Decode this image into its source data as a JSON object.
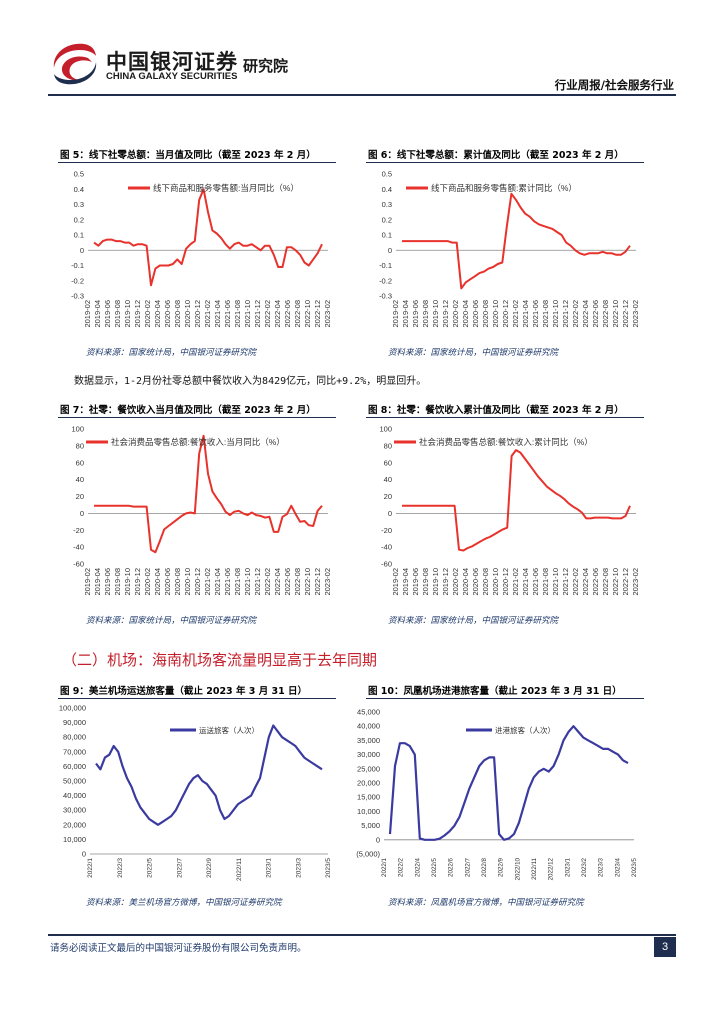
{
  "header": {
    "brand_cn": "中国银河证券",
    "brand_en": "CHINA GALAXY SECURITIES",
    "institute": "研究院",
    "report_type": "行业周报/社会服务行业"
  },
  "body_text": "数据显示，1-2月份社零总额中餐饮收入为8429亿元，同比+9.2%，明显回升。",
  "section_heading": "（二）机场：海南机场客流量明显高于去年同期",
  "footer": {
    "disclaimer": "请务必阅读正文最后的中国银河证券股份有限公司免责声明。",
    "page_number": "3"
  },
  "figures": [
    {
      "title": "图 5：线下社零总额：当月值及同比（截至 2023 年 2 月）",
      "source": "资料来源：国家统计局，中国银河证券研究院"
    },
    {
      "title": "图 6：线下社零总额：累计值及同比（截至 2023 年 2 月）",
      "source": "资料来源：国家统计局，中国银河证券研究院"
    },
    {
      "title": "图 7：社零：餐饮收入当月值及同比（截至 2023 年 2 月）",
      "source": "资料来源：国家统计局，中国银河证券研究院"
    },
    {
      "title": "图 8：社零：餐饮收入累计值及同比（截至 2023 年 2 月）",
      "source": "资料来源：国家统计局，中国银河证券研究院"
    },
    {
      "title": "图 9：美兰机场运送旅客量（截止 2023 年 3 月 31 日）",
      "source": "资料来源：美兰机场官方微博，中国银河证券研究院"
    },
    {
      "title": "图 10：凤凰机场进港旅客量（截止 2023 年 3 月 31 日）",
      "source": "资料来源：凤凰机场官方微博，中国银河证券研究院"
    }
  ],
  "chart_data": [
    {
      "type": "line",
      "legend": "线下商品和服务零售额:当月同比（%）",
      "ylim": [
        -0.3,
        0.5
      ],
      "yticks": [
        "0.5",
        "0.4",
        "0.3",
        "0.2",
        "0.1",
        "0",
        "-0.1",
        "-0.2",
        "-0.3"
      ],
      "xticks": [
        "2019-02",
        "2019-04",
        "2019-06",
        "2019-08",
        "2019-10",
        "2019-12",
        "2020-02",
        "2020-04",
        "2020-06",
        "2020-08",
        "2020-10",
        "2020-12",
        "2021-02",
        "2021-04",
        "2021-06",
        "2021-08",
        "2021-10",
        "2021-12",
        "2022-02",
        "2022-04",
        "2022-06",
        "2022-08",
        "2022-10",
        "2022-12",
        "2023-02"
      ],
      "color": "#e8322c",
      "values": [
        0.05,
        0.03,
        0.06,
        0.07,
        0.07,
        0.06,
        0.06,
        0.05,
        0.05,
        0.03,
        0.04,
        0.04,
        0.03,
        -0.23,
        -0.12,
        -0.1,
        -0.1,
        -0.1,
        -0.09,
        -0.06,
        -0.09,
        0.01,
        0.04,
        0.06,
        0.33,
        0.4,
        0.25,
        0.13,
        0.11,
        0.08,
        0.04,
        0.01,
        0.04,
        0.05,
        0.03,
        0.03,
        0.04,
        0.02,
        0.0,
        0.03,
        0.03,
        -0.03,
        -0.11,
        -0.11,
        0.02,
        0.02,
        0.0,
        -0.03,
        -0.08,
        -0.1,
        -0.06,
        -0.02,
        0.04
      ]
    },
    {
      "type": "line",
      "legend": "线下商品和服务零售额:累计同比（%）",
      "ylim": [
        -0.3,
        0.5
      ],
      "yticks": [
        "0.5",
        "0.4",
        "0.3",
        "0.2",
        "0.1",
        "0",
        "-0.1",
        "-0.2",
        "-0.3"
      ],
      "xticks": [
        "2019-02",
        "2019-04",
        "2019-06",
        "2019-08",
        "2019-10",
        "2019-12",
        "2020-02",
        "2020-04",
        "2020-06",
        "2020-08",
        "2020-10",
        "2020-12",
        "2021-02",
        "2021-04",
        "2021-06",
        "2021-08",
        "2021-10",
        "2021-12",
        "2022-02",
        "2022-04",
        "2022-06",
        "2022-08",
        "2022-10",
        "2022-12",
        "2023-02"
      ],
      "color": "#e8322c",
      "values": [
        0.06,
        0.06,
        0.06,
        0.06,
        0.06,
        0.06,
        0.06,
        0.06,
        0.06,
        0.06,
        0.06,
        0.05,
        0.05,
        -0.25,
        -0.21,
        -0.19,
        -0.17,
        -0.15,
        -0.14,
        -0.12,
        -0.11,
        -0.09,
        -0.08,
        0.16,
        0.37,
        0.33,
        0.28,
        0.24,
        0.22,
        0.19,
        0.17,
        0.16,
        0.15,
        0.14,
        0.12,
        0.1,
        0.05,
        0.03,
        0.0,
        -0.02,
        -0.03,
        -0.02,
        -0.02,
        -0.02,
        -0.01,
        -0.02,
        -0.02,
        -0.03,
        -0.03,
        -0.01,
        0.03
      ]
    },
    {
      "type": "line",
      "legend": "社会消费品零售总额:餐饮收入:当月同比（%）",
      "ylim": [
        -60,
        100
      ],
      "yticks": [
        "100",
        "80",
        "60",
        "40",
        "20",
        "0",
        "-20",
        "-40",
        "-60"
      ],
      "xticks": [
        "2019-02",
        "2019-04",
        "2019-06",
        "2019-08",
        "2019-10",
        "2019-12",
        "2020-02",
        "2020-04",
        "2020-06",
        "2020-08",
        "2020-10",
        "2020-12",
        "2021-02",
        "2021-04",
        "2021-06",
        "2021-08",
        "2021-10",
        "2021-12",
        "2022-02",
        "2022-04",
        "2022-06",
        "2022-08",
        "2022-10",
        "2022-12",
        "2023-02"
      ],
      "color": "#e8322c",
      "values": [
        9,
        9,
        9,
        9,
        9,
        9,
        9,
        9,
        9,
        8,
        8,
        8,
        8,
        -43,
        -46,
        -33,
        -19,
        -15,
        -11,
        -7,
        -3,
        0,
        1,
        0,
        71,
        92,
        47,
        26,
        18,
        11,
        2,
        -2,
        2,
        3,
        0,
        -2,
        1,
        -2,
        -3,
        -5,
        -4,
        -22,
        -22,
        -4,
        -1,
        9,
        -1,
        -10,
        -9,
        -14,
        -15,
        3,
        9
      ]
    },
    {
      "type": "line",
      "legend": "社会消费品零售总额:餐饮收入:累计同比（%）",
      "ylim": [
        -60,
        100
      ],
      "yticks": [
        "100",
        "80",
        "60",
        "40",
        "20",
        "0",
        "-20",
        "-40",
        "-60"
      ],
      "xticks": [
        "2019-02",
        "2019-04",
        "2019-06",
        "2019-08",
        "2019-10",
        "2019-12",
        "2020-02",
        "2020-04",
        "2020-06",
        "2020-08",
        "2020-10",
        "2020-12",
        "2021-02",
        "2021-04",
        "2021-06",
        "2021-08",
        "2021-10",
        "2021-12",
        "2022-02",
        "2022-04",
        "2022-06",
        "2022-08",
        "2022-10",
        "2022-12",
        "2023-02"
      ],
      "color": "#e8322c",
      "values": [
        9,
        9,
        9,
        9,
        9,
        9,
        9,
        9,
        9,
        9,
        9,
        9,
        9,
        -43,
        -44,
        -41,
        -39,
        -36,
        -33,
        -30,
        -28,
        -25,
        -22,
        -19,
        -17,
        68,
        75,
        72,
        65,
        58,
        51,
        44,
        38,
        32,
        28,
        24,
        21,
        17,
        12,
        8,
        5,
        1,
        -6,
        -6,
        -5,
        -5,
        -5,
        -5,
        -6,
        -6,
        -6,
        -3,
        9
      ]
    },
    {
      "type": "line",
      "legend": "运送旅客（人次）",
      "ylim": [
        0,
        100000
      ],
      "yticks": [
        "100,000",
        "90,000",
        "80,000",
        "70,000",
        "60,000",
        "50,000",
        "40,000",
        "30,000",
        "20,000",
        "10,000",
        "0"
      ],
      "xticks": [
        "2022/1",
        "2022/3",
        "2022/5",
        "2022/7",
        "2022/9",
        "2022/11",
        "2023/1",
        "2023/3",
        "2023/5"
      ],
      "color": "#3a3aa0",
      "x_range": [
        "2022/1",
        "2023/5"
      ],
      "values": [
        62000,
        58000,
        66000,
        68000,
        74000,
        70000,
        60000,
        52000,
        46000,
        38000,
        32000,
        28000,
        24000,
        22000,
        20000,
        22000,
        24000,
        26000,
        30000,
        36000,
        42000,
        48000,
        52000,
        54000,
        50000,
        48000,
        44000,
        40000,
        30000,
        24000,
        26000,
        30000,
        34000,
        36000,
        38000,
        40000,
        46000,
        52000,
        66000,
        80000,
        88000,
        84000,
        80000,
        78000,
        76000,
        74000,
        70000,
        66000,
        64000,
        62000,
        60000,
        58000
      ]
    },
    {
      "type": "line",
      "legend": "进港旅客（人次）",
      "ylim": [
        -5000,
        45000
      ],
      "yticks": [
        "45,000",
        "40,000",
        "35,000",
        "30,000",
        "25,000",
        "20,000",
        "15,000",
        "10,000",
        "5,000",
        "0",
        "(5,000)"
      ],
      "xticks": [
        "2022/1",
        "2022/2",
        "2022/4",
        "2022/5",
        "2022/6",
        "2022/7",
        "2022/8",
        "2022/9",
        "2022/10",
        "2022/11",
        "2022/12",
        "2023/1",
        "2023/2",
        "2023/3",
        "2023/4",
        "2023/5"
      ],
      "color": "#3a3aa0",
      "x_range": [
        "2022/1",
        "2023/5"
      ],
      "values": [
        2000,
        26000,
        34000,
        34000,
        33000,
        30000,
        500,
        0,
        0,
        0,
        400,
        1500,
        3000,
        5000,
        8000,
        13000,
        18000,
        22000,
        26000,
        28000,
        29000,
        29000,
        2000,
        0,
        500,
        2000,
        6000,
        12000,
        18000,
        22000,
        24000,
        25000,
        24000,
        26000,
        30000,
        35000,
        38000,
        40000,
        38000,
        36000,
        35000,
        34000,
        33000,
        32000,
        32000,
        31000,
        30000,
        28000,
        27000
      ]
    }
  ]
}
